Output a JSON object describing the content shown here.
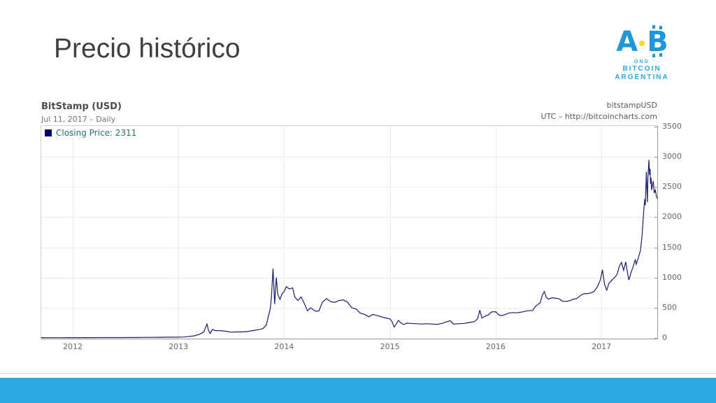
{
  "slide": {
    "title": "Precio histórico",
    "footer_color": "#2BA9E0"
  },
  "logo": {
    "letter_a": "A",
    "letter_b": "B",
    "ong": "ONG",
    "line1": "BITCOIN",
    "line2": "ARGENTINA",
    "blue": "#2098D8",
    "cyan": "#29ABE2",
    "yellow": "#FFD629"
  },
  "chart": {
    "title": "BitStamp (USD)",
    "subtitle": "Jul 11, 2017 – Daily",
    "watermark_line1": "bitstampUSD",
    "watermark_line2": "UTC – http://bitcoincharts.com",
    "legend": {
      "label": "Closing Price: 2311",
      "marker_color": "#000066",
      "text_color": "#2a6e70"
    },
    "line_color": "#1b1b70",
    "grid_color": "#ebebeb",
    "axis_color": "#9a9a9a",
    "border_color": "#d4d4d4",
    "tick_text_color": "#666666"
  },
  "chart_data": {
    "type": "line",
    "title": "BitStamp (USD)",
    "subtitle": "Jul 11, 2017 – Daily",
    "xlabel": "",
    "ylabel": "",
    "xlim": [
      2011.696,
      2017.535
    ],
    "ylim": [
      0,
      3500
    ],
    "x_ticks": [
      2012,
      2013,
      2014,
      2015,
      2016,
      2017
    ],
    "y_ticks": [
      0,
      500,
      1000,
      1500,
      2000,
      2500,
      3000,
      3500
    ],
    "grid": true,
    "legend_position": "top-left",
    "last_close": 2311,
    "series": [
      {
        "name": "Closing Price",
        "x": [
          2011.7,
          2011.85,
          2012.0,
          2012.15,
          2012.3,
          2012.45,
          2012.6,
          2012.7,
          2012.8,
          2012.9,
          2013.0,
          2013.05,
          2013.1,
          2013.15,
          2013.2,
          2013.24,
          2013.27,
          2013.285,
          2013.3,
          2013.32,
          2013.35,
          2013.4,
          2013.45,
          2013.5,
          2013.55,
          2013.6,
          2013.65,
          2013.7,
          2013.75,
          2013.8,
          2013.83,
          2013.85,
          2013.87,
          2013.88,
          2013.895,
          2013.91,
          2013.925,
          2013.94,
          2013.96,
          2013.98,
          2014.0,
          2014.02,
          2014.05,
          2014.08,
          2014.1,
          2014.13,
          2014.16,
          2014.19,
          2014.22,
          2014.25,
          2014.28,
          2014.3,
          2014.33,
          2014.36,
          2014.4,
          2014.44,
          2014.48,
          2014.52,
          2014.56,
          2014.6,
          2014.64,
          2014.68,
          2014.72,
          2014.76,
          2014.8,
          2014.84,
          2014.88,
          2014.92,
          2014.96,
          2015.0,
          2015.02,
          2015.04,
          2015.06,
          2015.08,
          2015.1,
          2015.13,
          2015.16,
          2015.2,
          2015.25,
          2015.3,
          2015.35,
          2015.4,
          2015.45,
          2015.5,
          2015.54,
          2015.57,
          2015.6,
          2015.65,
          2015.7,
          2015.75,
          2015.8,
          2015.83,
          2015.85,
          2015.87,
          2015.9,
          2015.93,
          2015.96,
          2016.0,
          2016.03,
          2016.06,
          2016.1,
          2016.13,
          2016.17,
          2016.2,
          2016.25,
          2016.3,
          2016.35,
          2016.38,
          2016.42,
          2016.44,
          2016.46,
          2016.48,
          2016.5,
          2016.53,
          2016.56,
          2016.6,
          2016.63,
          2016.67,
          2016.7,
          2016.73,
          2016.77,
          2016.8,
          2016.83,
          2016.87,
          2016.9,
          2016.93,
          2016.96,
          2016.99,
          2017.01,
          2017.03,
          2017.05,
          2017.07,
          2017.1,
          2017.13,
          2017.15,
          2017.17,
          2017.19,
          2017.21,
          2017.23,
          2017.25,
          2017.26,
          2017.28,
          2017.3,
          2017.32,
          2017.33,
          2017.35,
          2017.37,
          2017.385,
          2017.4,
          2017.41,
          2017.415,
          2017.42,
          2017.425,
          2017.43,
          2017.435,
          2017.44,
          2017.45,
          2017.455,
          2017.46,
          2017.465,
          2017.47,
          2017.475,
          2017.48,
          2017.49,
          2017.5,
          2017.51,
          2017.52,
          2017.53
        ],
        "y": [
          5,
          4,
          5,
          5,
          6,
          6,
          7,
          9,
          11,
          13,
          13,
          15,
          25,
          35,
          60,
          100,
          230,
          120,
          75,
          140,
          120,
          120,
          110,
          95,
          100,
          100,
          105,
          120,
          135,
          155,
          210,
          350,
          500,
          700,
          1150,
          560,
          1000,
          720,
          640,
          730,
          770,
          850,
          810,
          830,
          680,
          620,
          680,
          570,
          450,
          500,
          460,
          440,
          450,
          590,
          650,
          600,
          590,
          620,
          630,
          590,
          500,
          480,
          410,
          390,
          350,
          390,
          370,
          350,
          330,
          315,
          270,
          180,
          230,
          290,
          255,
          220,
          245,
          240,
          235,
          230,
          235,
          230,
          225,
          245,
          270,
          285,
          230,
          235,
          240,
          255,
          270,
          320,
          460,
          330,
          360,
          380,
          430,
          435,
          380,
          370,
          395,
          415,
          420,
          415,
          430,
          450,
          455,
          530,
          580,
          700,
          770,
          670,
          640,
          665,
          660,
          650,
          610,
          605,
          615,
          640,
          655,
          700,
          730,
          735,
          745,
          770,
          840,
          960,
          1130,
          890,
          790,
          900,
          960,
          1010,
          1060,
          1190,
          1250,
          1120,
          1260,
          1050,
          960,
          1080,
          1180,
          1300,
          1220,
          1330,
          1450,
          1700,
          2100,
          2300,
          2200,
          2450,
          2750,
          2500,
          2250,
          2650,
          2950,
          2700,
          2800,
          2550,
          2650,
          2450,
          2500,
          2600,
          2400,
          2450,
          2350,
          2311
        ]
      }
    ]
  }
}
